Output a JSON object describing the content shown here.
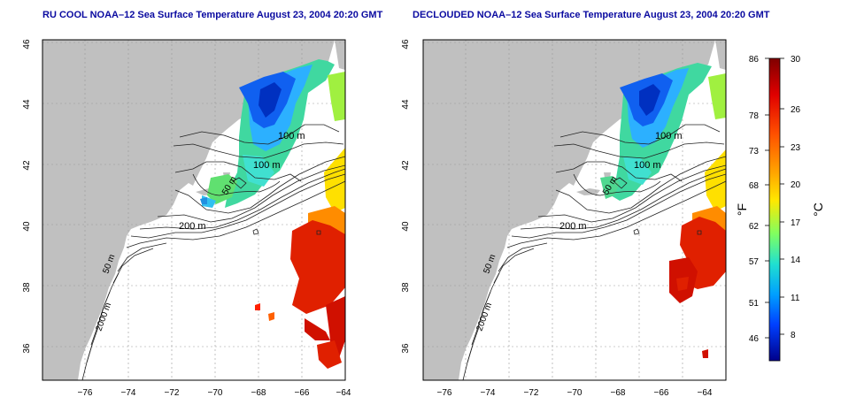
{
  "left_panel": {
    "title": "RU COOL NOAA–12 Sea Surface Temperature August 23, 2004 20:20 GMT",
    "contour_labels": [
      "100 m",
      "100 m",
      "50 m",
      "200 m",
      "50 m",
      "2000 m"
    ]
  },
  "right_panel": {
    "title": "DECLOUDED NOAA–12 Sea Surface Temperature August 23, 2004 20:20 GMT",
    "contour_labels": [
      "100 m",
      "100 m",
      "50 m",
      "200 m",
      "50 m",
      "2000 m"
    ]
  },
  "axes": {
    "x_ticks": [
      "−76",
      "−74",
      "−72",
      "−70",
      "−68",
      "−66",
      "−64"
    ],
    "y_ticks": [
      "36",
      "38",
      "40",
      "42",
      "44",
      "46"
    ]
  },
  "colorbar": {
    "label_f": "°F",
    "label_c": "°C",
    "f_ticks": [
      "86",
      "78",
      "73",
      "68",
      "62",
      "57",
      "51",
      "46"
    ],
    "c_ticks": [
      "30",
      "26",
      "23",
      "20",
      "17",
      "14",
      "11",
      "8"
    ]
  },
  "colors": {
    "land": "#c0c0c0",
    "water": "#ffffff",
    "title": "#0a0aa0",
    "grid": "#9a9a9a"
  }
}
